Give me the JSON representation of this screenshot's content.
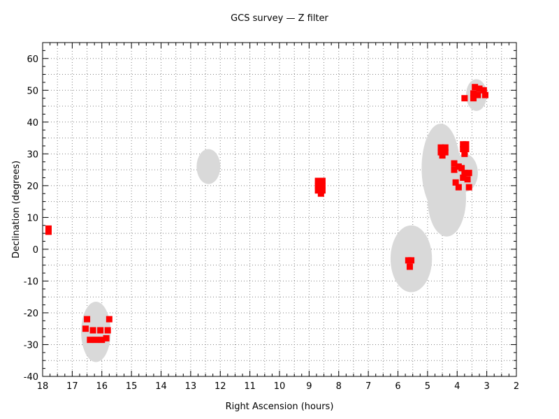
{
  "chart_data": {
    "type": "scatter",
    "title": "GCS survey — Z filter",
    "xlabel": "Right Ascension (hours)",
    "ylabel": "Declination (degrees)",
    "xlim": [
      18,
      2
    ],
    "ylim": [
      -40,
      65
    ],
    "xticks": [
      18,
      17,
      16,
      15,
      14,
      13,
      12,
      11,
      10,
      9,
      8,
      7,
      6,
      5,
      4,
      3,
      2
    ],
    "yticks": [
      -40,
      -30,
      -20,
      -10,
      0,
      10,
      20,
      30,
      40,
      50,
      60
    ],
    "grid": true,
    "colors": {
      "fields": "#d9d9d9",
      "observations": "#ff0000"
    },
    "series": [
      {
        "kind": "survey-fields",
        "regions": [
          {
            "ra": 16.2,
            "dec": -26,
            "ra_halfwidth": 0.5,
            "dec_halfwidth": 9.5
          },
          {
            "ra": 12.4,
            "dec": 26,
            "ra_halfwidth": 0.4,
            "dec_halfwidth": 5.5
          },
          {
            "ra": 5.55,
            "dec": -3,
            "ra_halfwidth": 0.7,
            "dec_halfwidth": 10.5
          },
          {
            "ra": 4.55,
            "dec": 25.5,
            "ra_halfwidth": 0.65,
            "dec_halfwidth": 14
          },
          {
            "ra": 4.35,
            "dec": 16,
            "ra_halfwidth": 0.65,
            "dec_halfwidth": 12
          },
          {
            "ra": 3.75,
            "dec": 24,
            "ra_halfwidth": 0.45,
            "dec_halfwidth": 6
          },
          {
            "ra": 3.35,
            "dec": 48.5,
            "ra_halfwidth": 0.35,
            "dec_halfwidth": 5
          }
        ]
      },
      {
        "kind": "observations",
        "points": [
          [
            17.8,
            6.5
          ],
          [
            17.8,
            5.5
          ],
          [
            16.5,
            -22
          ],
          [
            15.75,
            -22
          ],
          [
            16.55,
            -25
          ],
          [
            16.3,
            -25.5
          ],
          [
            16.05,
            -25.5
          ],
          [
            15.8,
            -25.5
          ],
          [
            16.4,
            -28.5
          ],
          [
            16.2,
            -28.5
          ],
          [
            16.0,
            -28.5
          ],
          [
            15.85,
            -28
          ],
          [
            8.7,
            21.5
          ],
          [
            8.55,
            21.5
          ],
          [
            8.7,
            20
          ],
          [
            8.55,
            20
          ],
          [
            8.7,
            18.5
          ],
          [
            8.55,
            18.5
          ],
          [
            8.6,
            17.5
          ],
          [
            5.65,
            -3.5
          ],
          [
            5.55,
            -3.5
          ],
          [
            5.6,
            -5.5
          ],
          [
            4.55,
            32
          ],
          [
            4.4,
            32
          ],
          [
            4.55,
            30.5
          ],
          [
            4.4,
            30.5
          ],
          [
            4.5,
            29.5
          ],
          [
            3.8,
            33
          ],
          [
            3.7,
            33
          ],
          [
            3.8,
            31.5
          ],
          [
            3.7,
            31.5
          ],
          [
            3.75,
            30
          ],
          [
            4.1,
            27
          ],
          [
            3.95,
            26
          ],
          [
            4.1,
            25
          ],
          [
            3.85,
            25.5
          ],
          [
            3.75,
            24
          ],
          [
            3.6,
            24
          ],
          [
            3.8,
            22.5
          ],
          [
            3.65,
            22
          ],
          [
            4.05,
            21
          ],
          [
            3.95,
            19.5
          ],
          [
            3.6,
            19.5
          ],
          [
            3.4,
            51
          ],
          [
            3.25,
            50.5
          ],
          [
            3.1,
            50
          ],
          [
            3.45,
            49
          ],
          [
            3.3,
            48.5
          ],
          [
            3.05,
            48.5
          ],
          [
            3.45,
            47.5
          ],
          [
            3.75,
            47.5
          ]
        ]
      }
    ]
  }
}
